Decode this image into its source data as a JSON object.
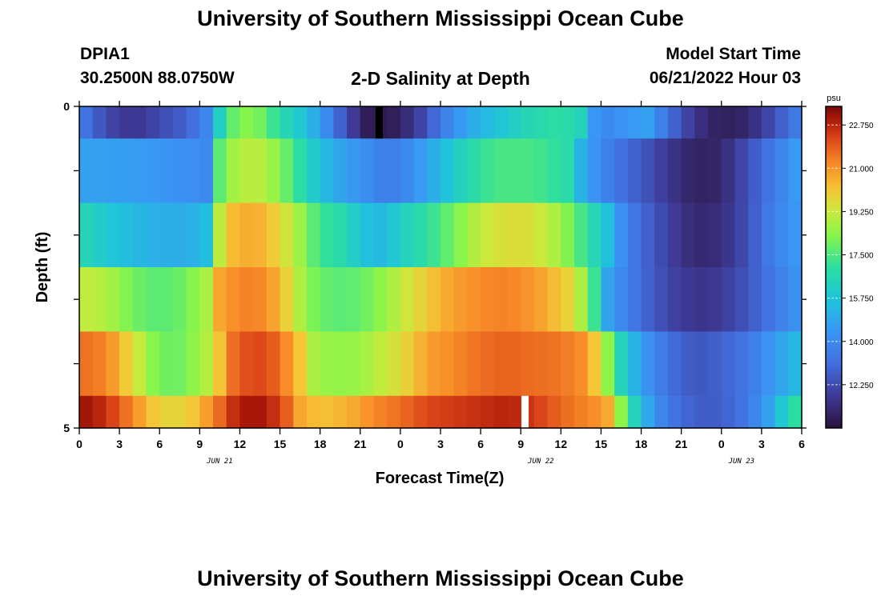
{
  "page": {
    "title": "University of Southern Mississippi Ocean Cube",
    "footer_title": "University of Southern Mississippi Ocean Cube"
  },
  "header": {
    "station": "DPIA1",
    "coords": "30.2500N  88.0750W",
    "plot_title": "2-D Salinity at Depth",
    "start_label": "Model Start Time",
    "start_value": "06/21/2022 Hour 03"
  },
  "colors": {
    "missing_black": "#000000",
    "missing_white": "#ffffff"
  },
  "chart_data": {
    "type": "heatmap",
    "title": "2-D Salinity at Depth",
    "xlabel": "Forecast Time(Z)",
    "ylabel": "Depth (ft)",
    "units": "psu",
    "x_ticks": [
      "0",
      "3",
      "6",
      "9",
      "12",
      "15",
      "18",
      "21",
      "0",
      "3",
      "6",
      "9",
      "12",
      "15",
      "18",
      "21",
      "0",
      "3",
      "6"
    ],
    "date_labels": [
      {
        "text": "JUN 21",
        "tick_index": 3.5
      },
      {
        "text": "JUN 22",
        "tick_index": 11.5
      },
      {
        "text": "JUN 23",
        "tick_index": 16.5
      }
    ],
    "y_ticks": [
      "0",
      "",
      "",
      "",
      "",
      "5"
    ],
    "ylim": [
      0,
      5
    ],
    "hours": 54,
    "colorbar": {
      "min": 10.5,
      "max": 23.5,
      "ticks": [
        "22.750",
        "21.000",
        "19.250",
        "17.500",
        "15.750",
        "14.000",
        "12.250"
      ],
      "tick_values": [
        22.75,
        21.0,
        19.25,
        17.5,
        15.75,
        14.0,
        12.25
      ]
    },
    "layers": [
      {
        "depth": "0.0-0.5",
        "knots": [
          [
            0,
            13.6
          ],
          [
            2,
            12.2
          ],
          [
            4,
            11.6
          ],
          [
            8,
            12.8
          ],
          [
            9.5,
            13.9
          ],
          [
            10.2,
            15.6
          ],
          [
            11,
            17.2
          ],
          [
            12,
            18.4
          ],
          [
            13.5,
            18.0
          ],
          [
            15,
            16.8
          ],
          [
            17,
            15.6
          ],
          [
            18.5,
            14.0
          ],
          [
            20,
            12.2
          ],
          [
            21.5,
            10.9
          ],
          [
            23,
            10.7
          ],
          [
            25,
            11.6
          ],
          [
            27,
            13.4
          ],
          [
            29,
            14.9
          ],
          [
            31,
            15.6
          ],
          [
            33,
            16.4
          ],
          [
            36,
            17.0
          ],
          [
            37.5,
            16.4
          ],
          [
            38,
            14.9
          ],
          [
            39,
            13.9
          ],
          [
            41,
            14.4
          ],
          [
            42.5,
            14.7
          ],
          [
            44,
            13.2
          ],
          [
            46,
            11.6
          ],
          [
            48,
            10.9
          ],
          [
            50,
            11.2
          ],
          [
            52,
            12.4
          ],
          [
            54,
            13.8
          ]
        ]
      },
      {
        "depth": "0.5-1.5",
        "knots": [
          [
            0,
            14.7
          ],
          [
            4,
            14.6
          ],
          [
            8,
            14.2
          ],
          [
            9.5,
            14.0
          ],
          [
            10.2,
            17.2
          ],
          [
            11,
            18.5
          ],
          [
            13,
            19.2
          ],
          [
            15,
            18.3
          ],
          [
            17,
            16.4
          ],
          [
            19,
            15.0
          ],
          [
            21,
            14.3
          ],
          [
            23,
            13.5
          ],
          [
            25,
            14.2
          ],
          [
            27,
            15.4
          ],
          [
            29,
            16.6
          ],
          [
            31,
            17.4
          ],
          [
            34,
            17.4
          ],
          [
            36.5,
            16.8
          ],
          [
            37.5,
            15.2
          ],
          [
            38,
            14.6
          ],
          [
            40,
            13.4
          ],
          [
            42,
            12.6
          ],
          [
            44,
            11.7
          ],
          [
            46,
            11.0
          ],
          [
            48,
            11.2
          ],
          [
            50,
            12.4
          ],
          [
            52,
            13.6
          ],
          [
            54,
            14.8
          ]
        ]
      },
      {
        "depth": "1.5-2.5",
        "knots": [
          [
            0,
            16.6
          ],
          [
            3,
            15.6
          ],
          [
            5,
            15.2
          ],
          [
            8,
            15.0
          ],
          [
            9.5,
            15.5
          ],
          [
            10.2,
            18.4
          ],
          [
            11,
            20.2
          ],
          [
            13,
            20.7
          ],
          [
            15,
            19.8
          ],
          [
            16.5,
            18.6
          ],
          [
            18,
            17.2
          ],
          [
            20,
            16.6
          ],
          [
            21,
            15.7
          ],
          [
            22.5,
            15.4
          ],
          [
            24,
            16.1
          ],
          [
            26,
            17.0
          ],
          [
            28,
            18.0
          ],
          [
            30,
            19.2
          ],
          [
            32,
            19.6
          ],
          [
            34,
            19.5
          ],
          [
            36,
            18.6
          ],
          [
            37,
            17.8
          ],
          [
            38,
            17.0
          ],
          [
            39.5,
            15.6
          ],
          [
            40.5,
            14.2
          ],
          [
            42,
            13.0
          ],
          [
            44,
            12.0
          ],
          [
            46,
            11.2
          ],
          [
            48,
            11.4
          ],
          [
            50,
            12.4
          ],
          [
            52,
            13.8
          ],
          [
            54,
            14.6
          ]
        ]
      },
      {
        "depth": "2.5-3.5",
        "knots": [
          [
            0,
            19.2
          ],
          [
            2,
            18.9
          ],
          [
            4,
            18.0
          ],
          [
            6,
            17.6
          ],
          [
            8,
            18.0
          ],
          [
            9.5,
            18.8
          ],
          [
            10.5,
            20.7
          ],
          [
            12,
            21.3
          ],
          [
            14,
            21.2
          ],
          [
            16,
            19.4
          ],
          [
            17,
            18.3
          ],
          [
            19,
            17.6
          ],
          [
            21,
            17.8
          ],
          [
            23,
            18.6
          ],
          [
            25,
            19.6
          ],
          [
            27,
            20.5
          ],
          [
            29,
            21.0
          ],
          [
            31,
            21.3
          ],
          [
            33,
            21.2
          ],
          [
            35,
            20.6
          ],
          [
            37,
            19.6
          ],
          [
            38.5,
            17.2
          ],
          [
            39.5,
            14.8
          ],
          [
            41,
            13.6
          ],
          [
            43,
            12.5
          ],
          [
            45,
            11.8
          ],
          [
            47,
            11.6
          ],
          [
            49,
            12.1
          ],
          [
            51,
            13.0
          ],
          [
            53,
            14.0
          ],
          [
            54,
            14.4
          ]
        ]
      },
      {
        "depth": "3.5-4.5",
        "knots": [
          [
            0,
            21.6
          ],
          [
            2,
            21.3
          ],
          [
            4,
            19.6
          ],
          [
            5.5,
            18.3
          ],
          [
            7,
            17.8
          ],
          [
            8.5,
            18.4
          ],
          [
            10,
            19.2
          ],
          [
            11,
            21.2
          ],
          [
            12,
            22.0
          ],
          [
            14,
            22.2
          ],
          [
            16,
            20.8
          ],
          [
            17.5,
            18.8
          ],
          [
            19,
            18.4
          ],
          [
            21,
            18.6
          ],
          [
            24,
            19.6
          ],
          [
            26,
            20.8
          ],
          [
            28,
            21.2
          ],
          [
            30,
            21.6
          ],
          [
            32,
            21.8
          ],
          [
            34,
            21.6
          ],
          [
            36,
            21.5
          ],
          [
            38,
            21.0
          ],
          [
            39.5,
            18.4
          ],
          [
            40.5,
            16.4
          ],
          [
            42,
            14.6
          ],
          [
            44,
            13.2
          ],
          [
            46,
            12.5
          ],
          [
            48,
            12.8
          ],
          [
            50,
            13.4
          ],
          [
            52,
            14.6
          ],
          [
            54,
            15.6
          ]
        ]
      },
      {
        "depth": "4.5-5.0",
        "knots": [
          [
            0,
            23.2
          ],
          [
            2,
            22.6
          ],
          [
            4,
            21.2
          ],
          [
            6,
            19.8
          ],
          [
            8,
            19.8
          ],
          [
            10,
            21.2
          ],
          [
            11.5,
            22.6
          ],
          [
            13,
            23.2
          ],
          [
            15,
            22.4
          ],
          [
            16.5,
            20.7
          ],
          [
            18,
            20.2
          ],
          [
            20,
            20.5
          ],
          [
            22,
            21.2
          ],
          [
            24,
            21.6
          ],
          [
            26,
            22.2
          ],
          [
            28,
            22.4
          ],
          [
            30,
            22.6
          ],
          [
            32,
            22.8
          ],
          [
            34,
            22.4
          ],
          [
            36,
            21.7
          ],
          [
            39,
            21.0
          ],
          [
            40,
            20.3
          ],
          [
            40.5,
            18.4
          ],
          [
            41.5,
            16.4
          ],
          [
            43,
            14.2
          ],
          [
            45,
            13.0
          ],
          [
            47,
            12.6
          ],
          [
            49,
            13.0
          ],
          [
            51,
            14.2
          ],
          [
            53,
            16.4
          ],
          [
            54,
            17.5
          ]
        ]
      }
    ],
    "missing_cells": [
      {
        "layer": 0,
        "hour": 22.15,
        "color": "black"
      },
      {
        "layer": 5,
        "hour": 33.05,
        "color": "white"
      }
    ]
  }
}
